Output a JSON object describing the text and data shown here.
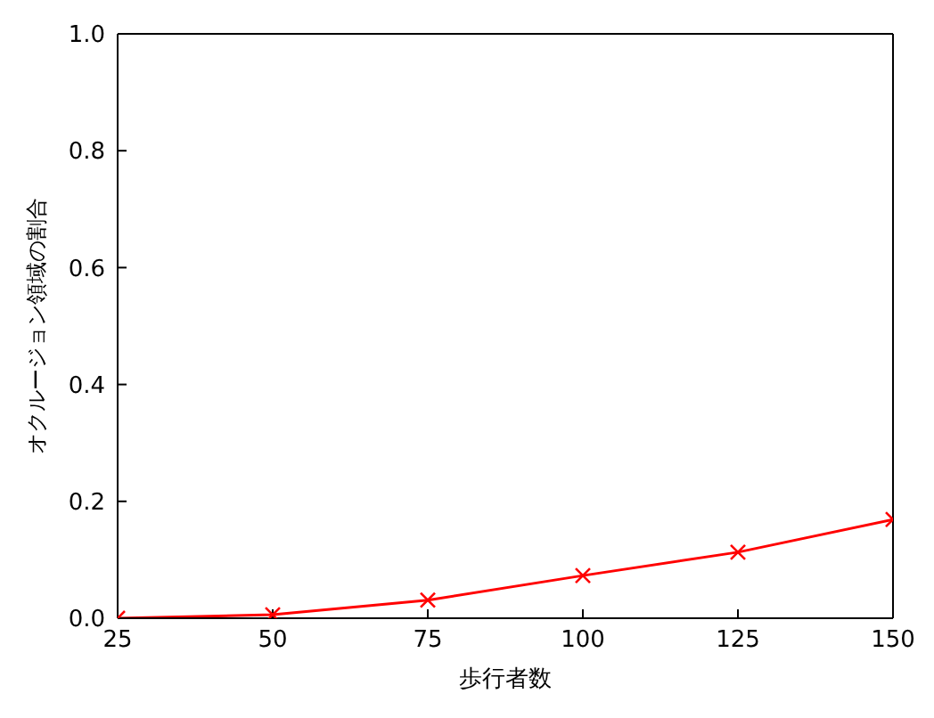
{
  "chart_data": {
    "type": "line",
    "xlabel": "歩行者数",
    "ylabel": "オクルージョン領域の割合",
    "x": [
      25,
      50,
      75,
      100,
      125,
      150
    ],
    "series": [
      {
        "color": "#ff0000",
        "values": [
          0,
          0.006,
          0.031,
          0.073,
          0.113,
          0.169
        ]
      }
    ],
    "xlim": [
      25,
      150
    ],
    "xticks": [
      25,
      50,
      75,
      100,
      125,
      150
    ],
    "ylim": [
      0,
      1
    ],
    "yticks": [
      {
        "value": 0,
        "label": "0.0"
      },
      {
        "value": 0.2,
        "label": "0.2"
      },
      {
        "value": 0.4,
        "label": "0.4"
      },
      {
        "value": 0.6,
        "label": "0.6"
      },
      {
        "value": 0.8,
        "label": "0.8"
      },
      {
        "value": 1,
        "label": "1.0"
      }
    ],
    "marker": "cross",
    "line_style": "solid",
    "grid": false,
    "legend": false
  }
}
